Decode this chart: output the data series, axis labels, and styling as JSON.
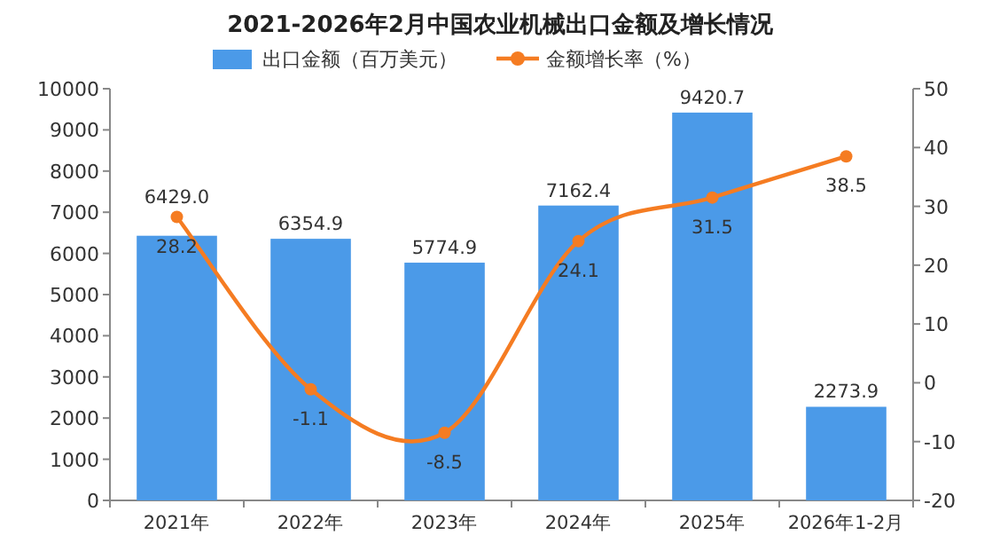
{
  "chart_data": {
    "type": "bar",
    "title": "2021-2026年2月中国农业机械出口金额及增长情况",
    "categories": [
      "2021年",
      "2022年",
      "2023年",
      "2024年",
      "2025年",
      "2026年1-2月"
    ],
    "series": [
      {
        "name": "出口金额（百万美元）",
        "color": "#4b9ae8",
        "values": [
          6429.0,
          6354.9,
          5774.9,
          7162.4,
          9420.7,
          2273.9
        ],
        "value_labels": [
          "6429.0",
          "6354.9",
          "5774.9",
          "7162.4",
          "9420.7",
          "2273.9"
        ]
      },
      {
        "name": "金额增长率（%）",
        "type": "line",
        "axis": "y2",
        "color": "#f57c22",
        "values": [
          28.2,
          -1.1,
          -8.5,
          24.1,
          31.5,
          38.5
        ],
        "value_labels": [
          "28.2",
          "-1.1",
          "-8.5",
          "24.1",
          "31.5",
          "38.5"
        ]
      }
    ],
    "ylim": [
      0,
      10000
    ],
    "yticks": [
      0,
      1000,
      2000,
      3000,
      4000,
      5000,
      6000,
      7000,
      8000,
      9000,
      10000
    ],
    "y2lim": [
      -20,
      50
    ],
    "y2ticks": [
      -20,
      -10,
      0,
      10,
      20,
      30,
      40,
      50
    ],
    "legend": "top",
    "marker": "circle",
    "grid": false
  }
}
